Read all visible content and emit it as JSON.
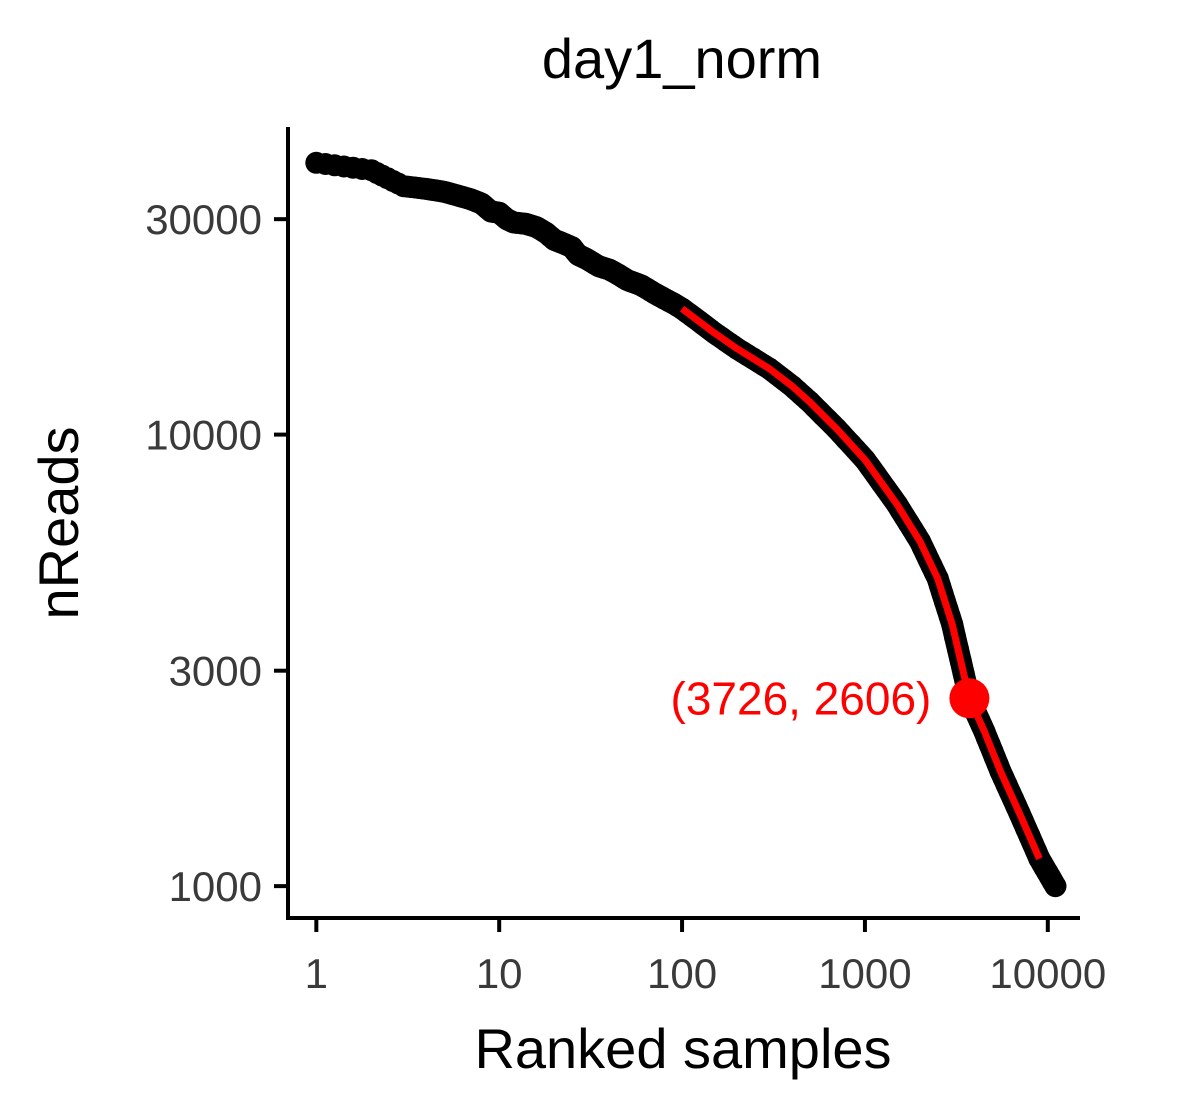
{
  "chart_data": {
    "type": "scatter",
    "title": "day1_norm",
    "xlabel": "Ranked samples",
    "ylabel": "nReads",
    "x_scale": "log10",
    "y_scale": "log10",
    "xlim": [
      0.7,
      15000
    ],
    "ylim": [
      850,
      48000
    ],
    "xticks": [
      {
        "value": 1,
        "label": "1"
      },
      {
        "value": 10,
        "label": "10"
      },
      {
        "value": 100,
        "label": "100"
      },
      {
        "value": 1000,
        "label": "1000"
      },
      {
        "value": 10000,
        "label": "10000"
      }
    ],
    "yticks": [
      {
        "value": 1000,
        "label": "1000"
      },
      {
        "value": 3000,
        "label": "3000"
      },
      {
        "value": 10000,
        "label": "10000"
      },
      {
        "value": 30000,
        "label": "30000"
      }
    ],
    "grid": false,
    "point_color": "#000000",
    "fit_color": "#ff0000",
    "points": [
      [
        1,
        40000
      ],
      [
        2,
        38500
      ],
      [
        3,
        35500
      ],
      [
        4,
        35000
      ],
      [
        5,
        34500
      ],
      [
        6,
        33800
      ],
      [
        7,
        33200
      ],
      [
        8,
        32500
      ],
      [
        9,
        31200
      ],
      [
        10,
        31000
      ],
      [
        11,
        30000
      ],
      [
        12,
        29500
      ],
      [
        14,
        29300
      ],
      [
        16,
        28800
      ],
      [
        18,
        28000
      ],
      [
        20,
        27000
      ],
      [
        22,
        26600
      ],
      [
        25,
        26000
      ],
      [
        27,
        25000
      ],
      [
        30,
        24500
      ],
      [
        35,
        23600
      ],
      [
        40,
        23200
      ],
      [
        45,
        22600
      ],
      [
        50,
        22000
      ],
      [
        60,
        21400
      ],
      [
        70,
        20600
      ],
      [
        80,
        20000
      ],
      [
        90,
        19500
      ],
      [
        100,
        19000
      ],
      [
        120,
        18000
      ],
      [
        150,
        16800
      ],
      [
        200,
        15500
      ],
      [
        300,
        14000
      ],
      [
        400,
        12800
      ],
      [
        500,
        11800
      ],
      [
        700,
        10300
      ],
      [
        1000,
        8800
      ],
      [
        1500,
        7000
      ],
      [
        2000,
        5800
      ],
      [
        2500,
        4800
      ],
      [
        3000,
        3800
      ],
      [
        3726,
        2606
      ],
      [
        4500,
        2200
      ],
      [
        5500,
        1800
      ],
      [
        7000,
        1450
      ],
      [
        9000,
        1150
      ],
      [
        11000,
        1000
      ]
    ],
    "fit_line": [
      [
        100,
        19000
      ],
      [
        150,
        16800
      ],
      [
        200,
        15500
      ],
      [
        300,
        14000
      ],
      [
        400,
        12800
      ],
      [
        500,
        11800
      ],
      [
        700,
        10300
      ],
      [
        1000,
        8800
      ],
      [
        1500,
        7000
      ],
      [
        2000,
        5800
      ],
      [
        2500,
        4800
      ],
      [
        3000,
        3800
      ],
      [
        3726,
        2606
      ],
      [
        4500,
        2200
      ],
      [
        5500,
        1800
      ],
      [
        7000,
        1450
      ],
      [
        9000,
        1150
      ]
    ],
    "knee": {
      "x": 3726,
      "y": 2606,
      "label": "(3726, 2606)",
      "color": "#ff0000"
    }
  }
}
